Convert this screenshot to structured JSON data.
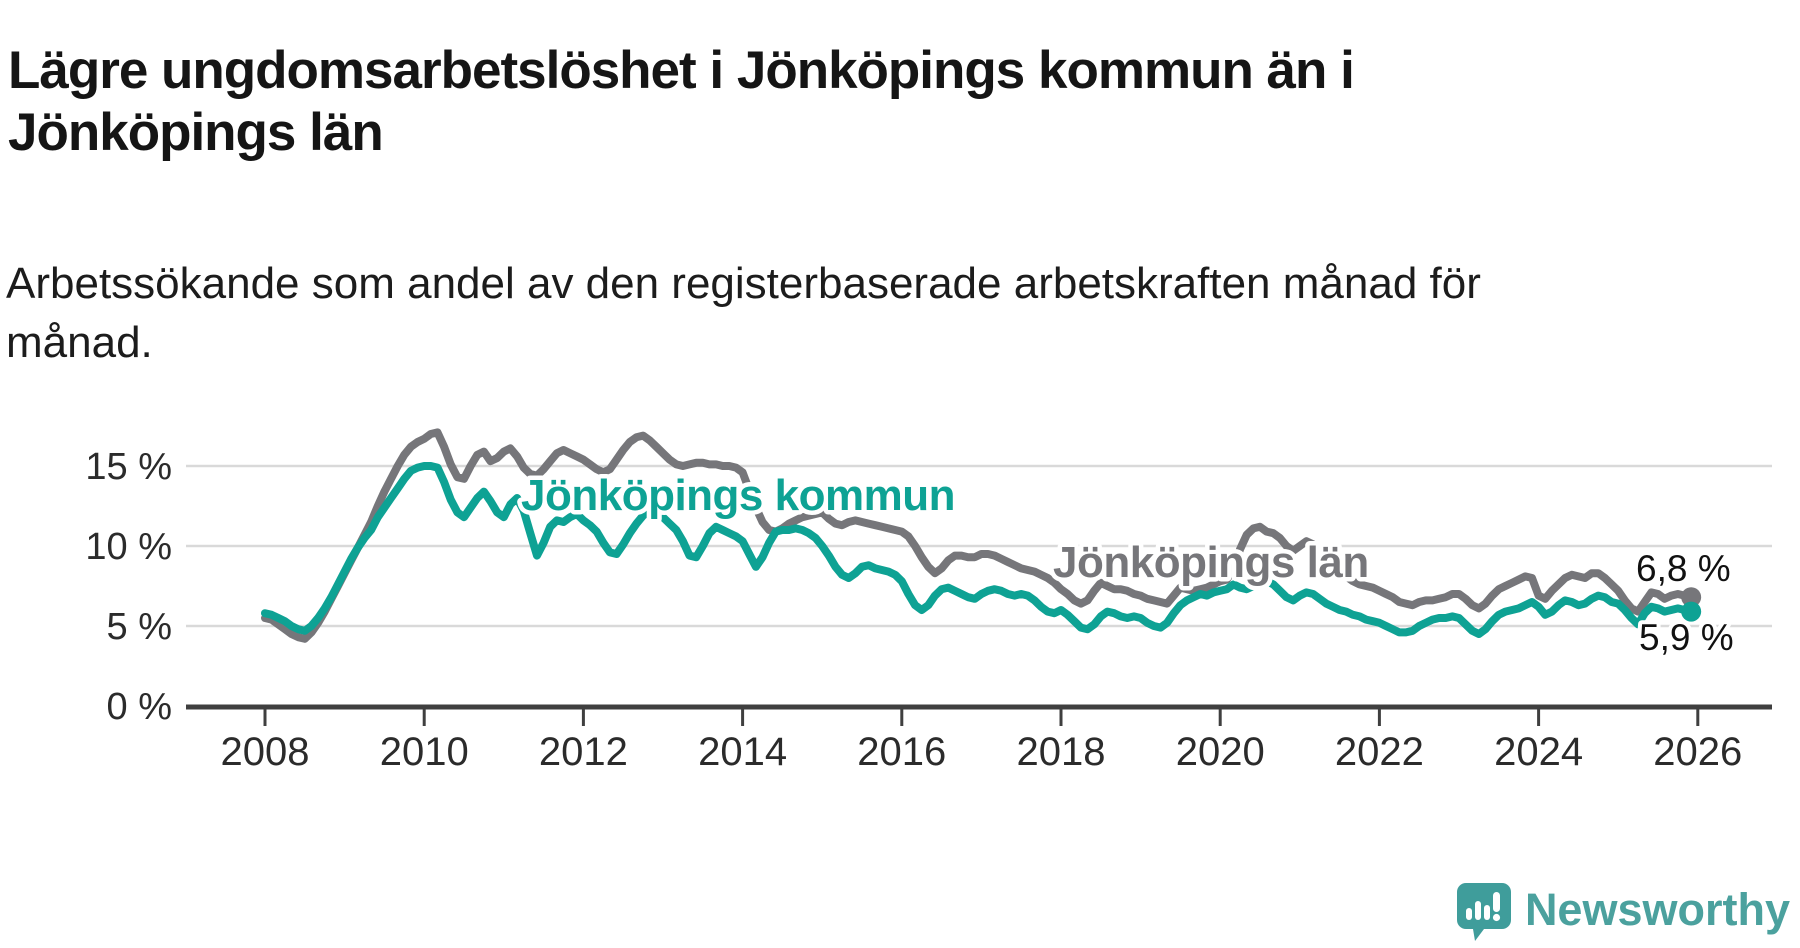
{
  "header": {
    "title_line1": "Lägre ungdomsarbetslöshet i Jönköpings kommun än i",
    "title_line2": "Jönköpings län",
    "subtitle_line1": "Arbetssökande som andel av den registerbaserade arbetskraften månad för",
    "subtitle_line2": "månad."
  },
  "chart_data": {
    "type": "line",
    "title": "Lägre ungdomsarbetslöshet i Jönköpings kommun än i Jönköpings län",
    "subtitle": "Arbetssökande som andel av den registerbaserade arbetskraften månad för månad.",
    "x_unit": "month",
    "x_start_year": 2008,
    "x_end_year": 2026,
    "xticks": [
      "2008",
      "2010",
      "2012",
      "2014",
      "2016",
      "2018",
      "2020",
      "2022",
      "2024",
      "2026"
    ],
    "yticks": [
      {
        "label": "15 %",
        "value": 15
      },
      {
        "label": "10 %",
        "value": 10
      },
      {
        "label": "5 %",
        "value": 5
      },
      {
        "label": "0 %",
        "value": 0
      }
    ],
    "ylim": [
      0,
      17.5
    ],
    "grid": true,
    "legend_position": "inline-labels",
    "series": [
      {
        "name": "Jönköpings län",
        "color": "#76767A",
        "end_label": "6,8 %",
        "end_value": 6.8,
        "values": [
          5.5,
          5.4,
          5.1,
          4.8,
          4.5,
          4.3,
          4.2,
          4.6,
          5.2,
          5.9,
          6.7,
          7.5,
          8.3,
          9.1,
          9.9,
          10.7,
          11.5,
          12.5,
          13.4,
          14.2,
          15.0,
          15.7,
          16.2,
          16.5,
          16.7,
          17.0,
          17.1,
          16.2,
          15.1,
          14.3,
          14.2,
          15.0,
          15.7,
          15.9,
          15.3,
          15.5,
          15.9,
          16.1,
          15.6,
          14.9,
          14.5,
          14.4,
          14.8,
          15.3,
          15.8,
          16.0,
          15.8,
          15.6,
          15.4,
          15.1,
          14.8,
          14.6,
          14.8,
          15.4,
          16.0,
          16.5,
          16.8,
          16.9,
          16.6,
          16.2,
          15.8,
          15.4,
          15.1,
          15.0,
          15.1,
          15.2,
          15.2,
          15.1,
          15.1,
          15.0,
          15.0,
          14.9,
          14.6,
          13.5,
          12.4,
          11.5,
          11.0,
          10.9,
          11.1,
          11.4,
          11.6,
          11.8,
          11.9,
          12.0,
          12.1,
          11.7,
          11.4,
          11.3,
          11.5,
          11.6,
          11.5,
          11.4,
          11.3,
          11.2,
          11.1,
          11.0,
          10.9,
          10.6,
          10.0,
          9.3,
          8.7,
          8.3,
          8.6,
          9.1,
          9.4,
          9.4,
          9.3,
          9.3,
          9.5,
          9.5,
          9.4,
          9.2,
          9.0,
          8.8,
          8.6,
          8.5,
          8.4,
          8.2,
          8.0,
          7.7,
          7.3,
          7.0,
          6.6,
          6.4,
          6.6,
          7.2,
          7.7,
          7.5,
          7.3,
          7.3,
          7.2,
          7.0,
          6.9,
          6.7,
          6.6,
          6.5,
          6.4,
          6.9,
          7.4,
          7.3,
          7.2,
          7.3,
          7.4,
          7.6,
          7.8,
          7.9,
          8.6,
          9.8,
          10.7,
          11.1,
          11.2,
          10.9,
          10.8,
          10.5,
          10.0,
          9.7,
          10.0,
          10.3,
          10.1,
          9.6,
          9.1,
          8.7,
          8.4,
          8.1,
          7.8,
          7.6,
          7.5,
          7.4,
          7.2,
          7.0,
          6.8,
          6.5,
          6.4,
          6.3,
          6.5,
          6.6,
          6.6,
          6.7,
          6.8,
          7.0,
          7.0,
          6.7,
          6.3,
          6.1,
          6.4,
          6.9,
          7.3,
          7.5,
          7.7,
          7.9,
          8.1,
          8.0,
          6.9,
          6.7,
          7.2,
          7.6,
          8.0,
          8.2,
          8.1,
          8.0,
          8.3,
          8.3,
          8.0,
          7.6,
          7.2,
          6.6,
          6.1,
          5.9,
          6.5,
          7.1,
          7.0,
          6.7,
          6.9,
          7.0,
          6.9,
          6.8
        ]
      },
      {
        "name": "Jönköpings kommun",
        "color": "#0EA294",
        "end_label": "5,9 %",
        "end_value": 5.9,
        "values": [
          5.8,
          5.7,
          5.5,
          5.3,
          5.0,
          4.8,
          4.7,
          5.0,
          5.5,
          6.1,
          6.8,
          7.6,
          8.4,
          9.2,
          9.9,
          10.5,
          11.0,
          11.8,
          12.4,
          13.0,
          13.6,
          14.2,
          14.7,
          14.9,
          15.0,
          15.0,
          14.9,
          14.0,
          12.9,
          12.1,
          11.8,
          12.4,
          13.0,
          13.4,
          12.8,
          12.1,
          11.8,
          12.6,
          13.0,
          12.2,
          10.8,
          9.4,
          10.2,
          11.2,
          11.6,
          11.5,
          11.8,
          12.0,
          11.6,
          11.3,
          10.9,
          10.2,
          9.6,
          9.5,
          10.1,
          10.8,
          11.4,
          11.9,
          12.2,
          12.3,
          11.8,
          11.4,
          11.0,
          10.3,
          9.4,
          9.3,
          10.0,
          10.8,
          11.2,
          11.0,
          10.8,
          10.6,
          10.3,
          9.5,
          8.7,
          9.3,
          10.2,
          10.9,
          11.0,
          11.0,
          11.1,
          11.0,
          10.8,
          10.5,
          10.0,
          9.4,
          8.7,
          8.2,
          8.0,
          8.3,
          8.7,
          8.8,
          8.6,
          8.5,
          8.4,
          8.2,
          7.8,
          7.0,
          6.3,
          6.0,
          6.3,
          6.9,
          7.3,
          7.4,
          7.2,
          7.0,
          6.8,
          6.7,
          7.0,
          7.2,
          7.3,
          7.2,
          7.0,
          6.9,
          7.0,
          6.9,
          6.6,
          6.2,
          5.9,
          5.8,
          6.0,
          5.7,
          5.3,
          4.9,
          4.8,
          5.1,
          5.6,
          5.9,
          5.8,
          5.6,
          5.5,
          5.6,
          5.5,
          5.2,
          5.0,
          4.9,
          5.2,
          5.8,
          6.3,
          6.6,
          6.8,
          7.0,
          6.9,
          7.1,
          7.2,
          7.3,
          7.6,
          7.4,
          7.3,
          7.5,
          7.7,
          7.8,
          7.6,
          7.2,
          6.8,
          6.6,
          6.9,
          7.1,
          7.0,
          6.7,
          6.4,
          6.2,
          6.0,
          5.9,
          5.7,
          5.6,
          5.4,
          5.3,
          5.2,
          5.0,
          4.8,
          4.6,
          4.6,
          4.7,
          5.0,
          5.2,
          5.4,
          5.5,
          5.5,
          5.6,
          5.5,
          5.1,
          4.7,
          4.5,
          4.8,
          5.3,
          5.7,
          5.9,
          6.0,
          6.1,
          6.3,
          6.5,
          6.2,
          5.7,
          5.9,
          6.3,
          6.6,
          6.5,
          6.3,
          6.4,
          6.7,
          6.9,
          6.8,
          6.5,
          6.4,
          6.0,
          5.5,
          5.1,
          5.8,
          6.2,
          6.1,
          5.9,
          6.0,
          6.1,
          6.0,
          5.9
        ]
      }
    ]
  },
  "footer": {
    "brand": "Newsworthy",
    "logo_icon": "newsworthy-speech-bubble-bar-chart-icon"
  },
  "colors": {
    "accent_teal": "#0EA294",
    "series_gray": "#76767A",
    "gridline": "#D9D9D9",
    "axis": "#3F3F3F",
    "tick_text": "#2B2B2B",
    "logo_teal": "#4BA19E",
    "background": "#FFFFFF"
  }
}
